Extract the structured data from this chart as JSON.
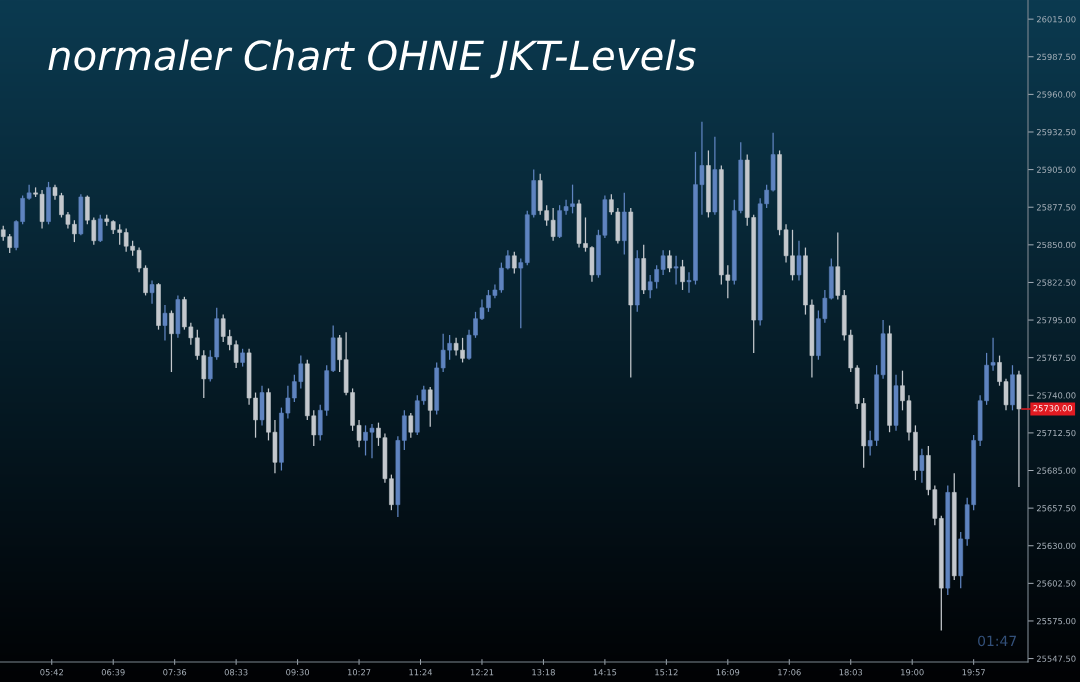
{
  "chart_data": {
    "type": "candlestick",
    "title": "normaler Chart OHNE JKT-Levels",
    "x": [
      4.95,
      5.05,
      5.15,
      5.25,
      5.35,
      5.45,
      5.55,
      5.65,
      5.75,
      5.85,
      5.95,
      6.05,
      6.15,
      6.25,
      6.35,
      6.45,
      6.55,
      6.65,
      6.75,
      6.85,
      6.95,
      7.05,
      7.15,
      7.25,
      7.35,
      7.45,
      7.55,
      7.65,
      7.75,
      7.85,
      7.95,
      8.05,
      8.15,
      8.25,
      8.35,
      8.45,
      8.55,
      8.65,
      8.75,
      8.85,
      8.95,
      9.05,
      9.15,
      9.25,
      9.35,
      9.45,
      9.55,
      9.65,
      9.75,
      9.85,
      9.95,
      10.05,
      10.15,
      10.25,
      10.35,
      10.45,
      10.55,
      10.65,
      10.75,
      10.85,
      10.95,
      11.05,
      11.15,
      11.25,
      11.35,
      11.45,
      11.55,
      11.65,
      11.75,
      11.85,
      11.95,
      12.05,
      12.15,
      12.25,
      12.35,
      12.45,
      12.55,
      12.65,
      12.75,
      12.85,
      12.95,
      13.05,
      13.15,
      13.25,
      13.35,
      13.45,
      13.55,
      13.65,
      13.75,
      13.85,
      13.95,
      14.05,
      14.15,
      14.25,
      14.35,
      14.45,
      14.55,
      14.65,
      14.75,
      14.85,
      14.95,
      15.05,
      15.15,
      15.25,
      15.35,
      15.45,
      15.55,
      15.65,
      15.75,
      15.85,
      15.95,
      16.05,
      16.15,
      16.25,
      16.35,
      16.45,
      16.55,
      16.65,
      16.75,
      16.85,
      16.95,
      17.05,
      17.15,
      17.25,
      17.35,
      17.45,
      17.55,
      17.65,
      17.75,
      17.85,
      17.95,
      18.05,
      18.15,
      18.25,
      18.35,
      18.45,
      18.55,
      18.65,
      18.75,
      18.85,
      18.95,
      19.05,
      19.15,
      19.25,
      19.35,
      19.45,
      19.55,
      19.65,
      19.75,
      19.85,
      19.95,
      20.05,
      20.15,
      20.25,
      20.35,
      20.45,
      20.55,
      20.65
    ],
    "ohlc": [
      [
        25861,
        25864,
        25853,
        25856
      ],
      [
        25856,
        25858,
        25844,
        25848
      ],
      [
        25848,
        25868,
        25846,
        25867
      ],
      [
        25867,
        25886,
        25865,
        25884
      ],
      [
        25884,
        25894,
        25883,
        25888
      ],
      [
        25888,
        25892,
        25885,
        25887
      ],
      [
        25887,
        25890,
        25862,
        25867
      ],
      [
        25867,
        25896,
        25865,
        25892
      ],
      [
        25892,
        25894,
        25883,
        25886
      ],
      [
        25886,
        25888,
        25870,
        25872
      ],
      [
        25872,
        25874,
        25862,
        25865
      ],
      [
        25865,
        25868,
        25852,
        25858
      ],
      [
        25858,
        25887,
        25857,
        25885
      ],
      [
        25885,
        25886,
        25865,
        25868
      ],
      [
        25868,
        25870,
        25850,
        25853
      ],
      [
        25853,
        25872,
        25852,
        25869
      ],
      [
        25869,
        25872,
        25864,
        25867
      ],
      [
        25867,
        25868,
        25858,
        25861
      ],
      [
        25861,
        25865,
        25850,
        25859
      ],
      [
        25859,
        25862,
        25845,
        25849
      ],
      [
        25849,
        25853,
        25842,
        25846
      ],
      [
        25846,
        25848,
        25830,
        25833
      ],
      [
        25833,
        25835,
        25813,
        25815
      ],
      [
        25815,
        25824,
        25807,
        25821
      ],
      [
        25821,
        25822,
        25788,
        25791
      ],
      [
        25791,
        25806,
        25780,
        25800
      ],
      [
        25800,
        25802,
        25757,
        25785
      ],
      [
        25785,
        25813,
        25782,
        25810
      ],
      [
        25810,
        25812,
        25788,
        25790
      ],
      [
        25790,
        25793,
        25777,
        25782
      ],
      [
        25782,
        25788,
        25766,
        25769
      ],
      [
        25769,
        25773,
        25738,
        25752
      ],
      [
        25752,
        25773,
        25750,
        25768
      ],
      [
        25768,
        25804,
        25766,
        25796
      ],
      [
        25796,
        25799,
        25779,
        25783
      ],
      [
        25783,
        25788,
        25773,
        25777
      ],
      [
        25777,
        25780,
        25760,
        25764
      ],
      [
        25764,
        25774,
        25761,
        25771
      ],
      [
        25771,
        25774,
        25733,
        25738
      ],
      [
        25738,
        25742,
        25709,
        25722
      ],
      [
        25722,
        25747,
        25718,
        25742
      ],
      [
        25742,
        25745,
        25707,
        25713
      ],
      [
        25713,
        25722,
        25683,
        25691
      ],
      [
        25691,
        25731,
        25685,
        25727
      ],
      [
        25727,
        25747,
        25723,
        25738
      ],
      [
        25738,
        25755,
        25735,
        25750
      ],
      [
        25750,
        25769,
        25745,
        25763
      ],
      [
        25763,
        25766,
        25722,
        25725
      ],
      [
        25725,
        25729,
        25703,
        25711
      ],
      [
        25711,
        25733,
        25707,
        25729
      ],
      [
        25729,
        25762,
        25725,
        25758
      ],
      [
        25758,
        25791,
        25757,
        25782
      ],
      [
        25782,
        25784,
        25757,
        25766
      ],
      [
        25766,
        25786,
        25740,
        25742
      ],
      [
        25742,
        25745,
        25714,
        25718
      ],
      [
        25718,
        25722,
        25702,
        25707
      ],
      [
        25707,
        25718,
        25696,
        25713
      ],
      [
        25713,
        25719,
        25694,
        25716
      ],
      [
        25716,
        25720,
        25703,
        25709
      ],
      [
        25709,
        25712,
        25676,
        25679
      ],
      [
        25679,
        25682,
        25656,
        25660
      ],
      [
        25660,
        25710,
        25651,
        25707
      ],
      [
        25707,
        25729,
        25700,
        25725
      ],
      [
        25725,
        25727,
        25709,
        25713
      ],
      [
        25713,
        25740,
        25711,
        25736
      ],
      [
        25736,
        25747,
        25733,
        25744
      ],
      [
        25744,
        25746,
        25717,
        25729
      ],
      [
        25729,
        25764,
        25726,
        25760
      ],
      [
        25760,
        25785,
        25757,
        25773
      ],
      [
        25773,
        25784,
        25766,
        25778
      ],
      [
        25778,
        25782,
        25769,
        25773
      ],
      [
        25773,
        25782,
        25764,
        25767
      ],
      [
        25767,
        25788,
        25766,
        25784
      ],
      [
        25784,
        25801,
        25782,
        25796
      ],
      [
        25796,
        25810,
        25795,
        25804
      ],
      [
        25804,
        25817,
        25801,
        25813
      ],
      [
        25813,
        25821,
        25811,
        25817
      ],
      [
        25817,
        25837,
        25815,
        25833
      ],
      [
        25833,
        25846,
        25832,
        25842
      ],
      [
        25842,
        25845,
        25829,
        25833
      ],
      [
        25833,
        25840,
        25789,
        25837
      ],
      [
        25837,
        25875,
        25835,
        25872
      ],
      [
        25872,
        25905,
        25870,
        25897
      ],
      [
        25897,
        25902,
        25872,
        25875
      ],
      [
        25875,
        25879,
        25864,
        25868
      ],
      [
        25868,
        25877,
        25853,
        25856
      ],
      [
        25856,
        25879,
        25855,
        25875
      ],
      [
        25875,
        25883,
        25872,
        25878
      ],
      [
        25878,
        25894,
        25873,
        25880
      ],
      [
        25880,
        25883,
        25848,
        25851
      ],
      [
        25851,
        25870,
        25845,
        25848
      ],
      [
        25848,
        25849,
        25823,
        25828
      ],
      [
        25828,
        25861,
        25826,
        25857
      ],
      [
        25857,
        25886,
        25855,
        25883
      ],
      [
        25883,
        25887,
        25872,
        25874
      ],
      [
        25874,
        25877,
        25851,
        25853
      ],
      [
        25853,
        25888,
        25843,
        25874
      ],
      [
        25874,
        25877,
        25753,
        25806
      ],
      [
        25806,
        25846,
        25801,
        25840
      ],
      [
        25840,
        25850,
        25814,
        25817
      ],
      [
        25817,
        25828,
        25811,
        25823
      ],
      [
        25823,
        25835,
        25818,
        25832
      ],
      [
        25832,
        25846,
        25828,
        25842
      ],
      [
        25842,
        25846,
        25830,
        25833
      ],
      [
        25833,
        25842,
        25821,
        25834
      ],
      [
        25834,
        25839,
        25817,
        25823
      ],
      [
        25823,
        25830,
        25815,
        25824
      ],
      [
        25824,
        25918,
        25821,
        25894
      ],
      [
        25894,
        25940,
        25872,
        25908
      ],
      [
        25908,
        25919,
        25870,
        25874
      ],
      [
        25874,
        25929,
        25872,
        25905
      ],
      [
        25905,
        25908,
        25821,
        25828
      ],
      [
        25828,
        25835,
        25811,
        25824
      ],
      [
        25824,
        25883,
        25821,
        25875
      ],
      [
        25875,
        25925,
        25873,
        25912
      ],
      [
        25912,
        25916,
        25864,
        25870
      ],
      [
        25870,
        25872,
        25771,
        25795
      ],
      [
        25795,
        25884,
        25791,
        25880
      ],
      [
        25880,
        25894,
        25877,
        25890
      ],
      [
        25890,
        25932,
        25889,
        25916
      ],
      [
        25916,
        25919,
        25857,
        25861
      ],
      [
        25861,
        25865,
        25837,
        25842
      ],
      [
        25842,
        25861,
        25824,
        25828
      ],
      [
        25828,
        25853,
        25824,
        25842
      ],
      [
        25842,
        25848,
        25799,
        25806
      ],
      [
        25806,
        25810,
        25753,
        25769
      ],
      [
        25769,
        25802,
        25766,
        25796
      ],
      [
        25796,
        25817,
        25793,
        25811
      ],
      [
        25811,
        25840,
        25810,
        25834
      ],
      [
        25834,
        25859,
        25810,
        25813
      ],
      [
        25813,
        25817,
        25780,
        25784
      ],
      [
        25784,
        25788,
        25757,
        25760
      ],
      [
        25760,
        25762,
        25730,
        25734
      ],
      [
        25734,
        25738,
        25687,
        25703
      ],
      [
        25703,
        25714,
        25696,
        25707
      ],
      [
        25707,
        25762,
        25703,
        25755
      ],
      [
        25755,
        25795,
        25752,
        25785
      ],
      [
        25785,
        25791,
        25713,
        25718
      ],
      [
        25718,
        25755,
        25714,
        25747
      ],
      [
        25747,
        25758,
        25729,
        25736
      ],
      [
        25736,
        25740,
        25707,
        25713
      ],
      [
        25713,
        25718,
        25678,
        25685
      ],
      [
        25685,
        25701,
        25676,
        25696
      ],
      [
        25696,
        25703,
        25667,
        25671
      ],
      [
        25671,
        25674,
        25645,
        25650
      ],
      [
        25650,
        25652,
        25568,
        25599
      ],
      [
        25599,
        25674,
        25594,
        25669
      ],
      [
        25669,
        25683,
        25605,
        25608
      ],
      [
        25608,
        25640,
        25599,
        25635
      ],
      [
        25635,
        25665,
        25630,
        25660
      ],
      [
        25660,
        25711,
        25656,
        25707
      ],
      [
        25707,
        25740,
        25703,
        25736
      ],
      [
        25736,
        25771,
        25733,
        25762
      ],
      [
        25762,
        25782,
        25758,
        25764
      ],
      [
        25764,
        25769,
        25747,
        25750
      ],
      [
        25750,
        25752,
        25729,
        25733
      ],
      [
        25733,
        25762,
        25729,
        25755
      ],
      [
        25755,
        25758,
        25673,
        25730
      ]
    ],
    "colors": [
      "#c4c8cd",
      "#c4c8cd",
      "#5f84c0",
      "#5f84c0",
      "#5f84c0",
      "#c4c8cd",
      "#c4c8cd",
      "#5f84c0",
      "#c4c8cd",
      "#c4c8cd",
      "#c4c8cd",
      "#c4c8cd",
      "#5f84c0",
      "#c4c8cd",
      "#c4c8cd",
      "#5f84c0",
      "#c4c8cd",
      "#c4c8cd",
      "#c4c8cd",
      "#c4c8cd",
      "#c4c8cd",
      "#c4c8cd",
      "#c4c8cd",
      "#5f84c0",
      "#c4c8cd",
      "#5f84c0",
      "#c4c8cd",
      "#5f84c0",
      "#c4c8cd",
      "#c4c8cd",
      "#c4c8cd",
      "#c4c8cd",
      "#5f84c0",
      "#5f84c0",
      "#c4c8cd",
      "#c4c8cd",
      "#c4c8cd",
      "#5f84c0",
      "#c4c8cd",
      "#c4c8cd",
      "#5f84c0",
      "#c4c8cd",
      "#c4c8cd",
      "#5f84c0",
      "#5f84c0",
      "#5f84c0",
      "#5f84c0",
      "#c4c8cd",
      "#c4c8cd",
      "#5f84c0",
      "#5f84c0",
      "#5f84c0",
      "#c4c8cd",
      "#c4c8cd",
      "#c4c8cd",
      "#c4c8cd",
      "#5f84c0",
      "#5f84c0",
      "#c4c8cd",
      "#c4c8cd",
      "#c4c8cd",
      "#5f84c0",
      "#5f84c0",
      "#c4c8cd",
      "#5f84c0",
      "#5f84c0",
      "#c4c8cd",
      "#5f84c0",
      "#5f84c0",
      "#5f84c0",
      "#c4c8cd",
      "#c4c8cd",
      "#5f84c0",
      "#5f84c0",
      "#5f84c0",
      "#5f84c0",
      "#5f84c0",
      "#5f84c0",
      "#5f84c0",
      "#c4c8cd",
      "#5f84c0",
      "#5f84c0",
      "#5f84c0",
      "#c4c8cd",
      "#c4c8cd",
      "#c4c8cd",
      "#5f84c0",
      "#5f84c0",
      "#5f84c0",
      "#c4c8cd",
      "#c4c8cd",
      "#c4c8cd",
      "#5f84c0",
      "#5f84c0",
      "#c4c8cd",
      "#c4c8cd",
      "#5f84c0",
      "#c4c8cd",
      "#5f84c0",
      "#c4c8cd",
      "#5f84c0",
      "#5f84c0",
      "#5f84c0",
      "#c4c8cd",
      "#5f84c0",
      "#c4c8cd",
      "#5f84c0",
      "#5f84c0",
      "#5f84c0",
      "#c4c8cd",
      "#5f84c0",
      "#c4c8cd",
      "#c4c8cd",
      "#5f84c0",
      "#5f84c0",
      "#c4c8cd",
      "#c4c8cd",
      "#5f84c0",
      "#5f84c0",
      "#5f84c0",
      "#c4c8cd",
      "#c4c8cd",
      "#c4c8cd",
      "#5f84c0",
      "#c4c8cd",
      "#c4c8cd",
      "#5f84c0",
      "#5f84c0",
      "#5f84c0",
      "#c4c8cd",
      "#c4c8cd",
      "#c4c8cd",
      "#c4c8cd",
      "#c4c8cd",
      "#5f84c0",
      "#5f84c0",
      "#5f84c0",
      "#c4c8cd",
      "#5f84c0",
      "#c4c8cd",
      "#c4c8cd",
      "#c4c8cd",
      "#5f84c0",
      "#c4c8cd",
      "#c4c8cd",
      "#c4c8cd",
      "#5f84c0",
      "#c4c8cd",
      "#5f84c0",
      "#5f84c0",
      "#5f84c0",
      "#5f84c0",
      "#5f84c0",
      "#5f84c0",
      "#c4c8cd",
      "#c4c8cd",
      "#5f84c0",
      "#c4c8cd"
    ],
    "xlim": [
      4.9,
      20.79
    ],
    "ylim": [
      25545,
      26029
    ],
    "xticks": [
      {
        "value": 5.7,
        "label": "05:42"
      },
      {
        "value": 6.65,
        "label": "06:39"
      },
      {
        "value": 7.6,
        "label": "07:36"
      },
      {
        "value": 8.55,
        "label": "08:33"
      },
      {
        "value": 9.5,
        "label": "09:30"
      },
      {
        "value": 10.45,
        "label": "10:27"
      },
      {
        "value": 11.4,
        "label": "11:24"
      },
      {
        "value": 12.35,
        "label": "12:21"
      },
      {
        "value": 13.3,
        "label": "13:18"
      },
      {
        "value": 14.25,
        "label": "14:15"
      },
      {
        "value": 15.2,
        "label": "15:12"
      },
      {
        "value": 16.15,
        "label": "16:09"
      },
      {
        "value": 17.1,
        "label": "17:06"
      },
      {
        "value": 18.05,
        "label": "18:03"
      },
      {
        "value": 19.0,
        "label": "19:00"
      },
      {
        "value": 19.95,
        "label": "19:57"
      }
    ],
    "yticks": [
      {
        "value": 25547.5,
        "label": "25547.50"
      },
      {
        "value": 25575,
        "label": "25575.00"
      },
      {
        "value": 25602.5,
        "label": "25602.50"
      },
      {
        "value": 25630,
        "label": "25630.00"
      },
      {
        "value": 25657.5,
        "label": "25657.50"
      },
      {
        "value": 25685,
        "label": "25685.00"
      },
      {
        "value": 25712.5,
        "label": "25712.50"
      },
      {
        "value": 25740,
        "label": "25740.00"
      },
      {
        "value": 25767.5,
        "label": "25767.50"
      },
      {
        "value": 25795,
        "label": "25795.00"
      },
      {
        "value": 25822.5,
        "label": "25822.50"
      },
      {
        "value": 25850,
        "label": "25850.00"
      },
      {
        "value": 25877.5,
        "label": "25877.50"
      },
      {
        "value": 25905,
        "label": "25905.00"
      },
      {
        "value": 25932.5,
        "label": "25932.50"
      },
      {
        "value": 25960,
        "label": "25960.00"
      },
      {
        "value": 25987.5,
        "label": "25987.50"
      },
      {
        "value": 26015,
        "label": "26015.00"
      }
    ],
    "annotations": [
      {
        "text": "25730.00",
        "x": 20.65,
        "y": 25730
      },
      "01:47"
    ]
  }
}
